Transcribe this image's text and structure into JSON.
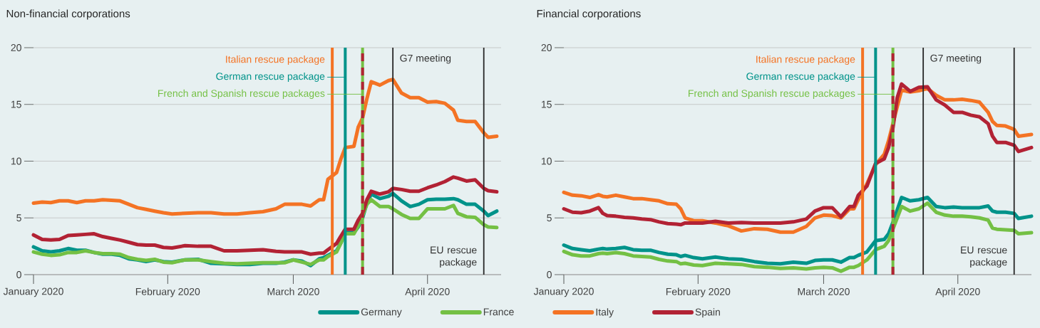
{
  "chart_data": [
    {
      "type": "line",
      "title": "Non-financial corporations",
      "x": [
        "2020-01-01",
        "2020-01-03",
        "2020-01-05",
        "2020-01-07",
        "2020-01-09",
        "2020-01-11",
        "2020-01-13",
        "2020-01-15",
        "2020-01-17",
        "2020-01-19",
        "2020-01-21",
        "2020-01-23",
        "2020-01-25",
        "2020-01-27",
        "2020-01-29",
        "2020-01-31",
        "2020-02-02",
        "2020-02-05",
        "2020-02-08",
        "2020-02-11",
        "2020-02-14",
        "2020-02-17",
        "2020-02-20",
        "2020-02-23",
        "2020-02-26",
        "2020-02-28",
        "2020-03-01",
        "2020-03-03",
        "2020-03-05",
        "2020-03-07",
        "2020-03-08",
        "2020-03-09",
        "2020-03-11",
        "2020-03-12",
        "2020-03-13",
        "2020-03-15",
        "2020-03-16",
        "2020-03-17",
        "2020-03-18",
        "2020-03-19",
        "2020-03-21",
        "2020-03-23",
        "2020-03-24",
        "2020-03-26",
        "2020-03-28",
        "2020-03-30",
        "2020-04-01",
        "2020-04-03",
        "2020-04-05",
        "2020-04-07",
        "2020-04-08",
        "2020-04-10",
        "2020-04-12",
        "2020-04-14",
        "2020-04-15",
        "2020-04-17"
      ],
      "series": [
        {
          "name": "Germany",
          "color": "#00938a",
          "values": [
            2.45,
            2.1,
            2.0,
            2.1,
            2.3,
            2.15,
            2.15,
            1.95,
            1.8,
            1.8,
            1.7,
            1.4,
            1.3,
            1.15,
            1.3,
            1.15,
            1.1,
            1.3,
            1.35,
            1.0,
            0.95,
            0.9,
            0.9,
            1.0,
            1.0,
            1.1,
            1.3,
            1.2,
            0.8,
            1.4,
            1.5,
            1.7,
            2.1,
            2.8,
            3.7,
            3.7,
            4.2,
            5.0,
            6.3,
            7.1,
            6.7,
            6.9,
            7.15,
            6.5,
            6.0,
            6.2,
            6.6,
            6.65,
            6.65,
            6.7,
            6.6,
            6.2,
            6.2,
            5.6,
            5.2,
            5.6
          ]
        },
        {
          "name": "France",
          "color": "#74c044",
          "values": [
            2.0,
            1.8,
            1.7,
            1.75,
            1.95,
            1.95,
            2.1,
            1.95,
            1.85,
            1.85,
            1.8,
            1.5,
            1.35,
            1.25,
            1.35,
            1.1,
            1.05,
            1.3,
            1.3,
            1.15,
            1.0,
            0.95,
            1.0,
            1.05,
            1.05,
            1.05,
            1.3,
            1.1,
            0.9,
            1.3,
            1.3,
            1.6,
            2.0,
            2.8,
            3.6,
            3.6,
            4.3,
            5.2,
            6.2,
            6.6,
            6.0,
            6.0,
            5.8,
            5.3,
            4.95,
            4.95,
            5.8,
            5.8,
            5.8,
            6.1,
            5.4,
            5.1,
            5.05,
            4.4,
            4.2,
            4.15
          ]
        },
        {
          "name": "Italy",
          "color": "#f47324",
          "values": [
            6.3,
            6.4,
            6.35,
            6.5,
            6.5,
            6.35,
            6.5,
            6.5,
            6.6,
            6.55,
            6.5,
            6.2,
            5.9,
            5.75,
            5.6,
            5.45,
            5.35,
            5.4,
            5.45,
            5.45,
            5.35,
            5.35,
            5.45,
            5.55,
            5.8,
            6.2,
            6.2,
            6.2,
            6.05,
            6.6,
            6.6,
            8.4,
            9.0,
            10.2,
            11.2,
            11.3,
            13.0,
            13.8,
            15.5,
            17.0,
            16.7,
            17.1,
            17.2,
            16.0,
            15.6,
            15.6,
            15.2,
            15.25,
            15.1,
            14.5,
            13.6,
            13.5,
            13.5,
            12.5,
            12.1,
            12.2
          ]
        },
        {
          "name": "Spain",
          "color": "#b22234",
          "values": [
            3.5,
            3.1,
            3.05,
            3.1,
            3.45,
            3.5,
            3.55,
            3.6,
            3.35,
            3.2,
            3.05,
            2.85,
            2.65,
            2.6,
            2.6,
            2.4,
            2.35,
            2.55,
            2.5,
            2.5,
            2.1,
            2.1,
            2.15,
            2.2,
            2.05,
            2.0,
            2.0,
            2.0,
            1.8,
            1.9,
            1.9,
            2.2,
            2.75,
            3.4,
            4.0,
            4.0,
            4.8,
            5.4,
            6.6,
            7.35,
            7.1,
            7.3,
            7.6,
            7.5,
            7.35,
            7.35,
            7.65,
            7.9,
            8.2,
            8.6,
            8.5,
            8.25,
            8.35,
            7.6,
            7.4,
            7.3
          ]
        }
      ],
      "xlim": [
        "2020-01-01",
        "2020-04-18"
      ],
      "xticks": [
        {
          "value": "2020-01-01",
          "label": "January 2020"
        },
        {
          "value": "2020-02-01",
          "label": "February 2020"
        },
        {
          "value": "2020-03-01",
          "label": "March 2020"
        },
        {
          "value": "2020-04-01",
          "label": "April 2020"
        }
      ],
      "ylim": [
        0,
        20
      ],
      "yticks": [
        0,
        5,
        10,
        15,
        20
      ],
      "grid": "y",
      "legend": "bottom",
      "ref_lines": [
        {
          "axis": "x",
          "value": "2020-03-10",
          "label": "Italian rescue package",
          "color": "#f47324"
        },
        {
          "axis": "x",
          "value": "2020-03-13",
          "label": "German rescue package",
          "color": "#00938a"
        },
        {
          "axis": "x",
          "value": "2020-03-17",
          "label": "French and Spanish rescue packages",
          "color": "#74c044"
        },
        {
          "axis": "x",
          "value": "2020-03-17",
          "color": "#b22234",
          "line_style": "dashed"
        },
        {
          "axis": "x",
          "value": "2020-03-24",
          "label": "G7 meeting"
        },
        {
          "axis": "x",
          "value": "2020-04-14",
          "label": "EU rescue package"
        }
      ]
    },
    {
      "type": "line",
      "title": "Financial corporations",
      "x": [
        "2020-01-01",
        "2020-01-03",
        "2020-01-05",
        "2020-01-07",
        "2020-01-09",
        "2020-01-10",
        "2020-01-11",
        "2020-01-13",
        "2020-01-15",
        "2020-01-17",
        "2020-01-19",
        "2020-01-21",
        "2020-01-23",
        "2020-01-25",
        "2020-01-27",
        "2020-01-28",
        "2020-01-29",
        "2020-01-31",
        "2020-02-02",
        "2020-02-05",
        "2020-02-08",
        "2020-02-11",
        "2020-02-14",
        "2020-02-17",
        "2020-02-20",
        "2020-02-23",
        "2020-02-26",
        "2020-02-28",
        "2020-03-01",
        "2020-03-03",
        "2020-03-05",
        "2020-03-07",
        "2020-03-08",
        "2020-03-09",
        "2020-03-11",
        "2020-03-13",
        "2020-03-15",
        "2020-03-16",
        "2020-03-17",
        "2020-03-18",
        "2020-03-19",
        "2020-03-21",
        "2020-03-23",
        "2020-03-25",
        "2020-03-27",
        "2020-03-29",
        "2020-03-31",
        "2020-04-02",
        "2020-04-04",
        "2020-04-06",
        "2020-04-08",
        "2020-04-09",
        "2020-04-10",
        "2020-04-12",
        "2020-04-14",
        "2020-04-15",
        "2020-04-18"
      ],
      "series": [
        {
          "color": "#00938a",
          "values": [
            2.6,
            2.3,
            2.2,
            2.1,
            2.25,
            2.3,
            2.25,
            2.3,
            2.4,
            2.2,
            2.15,
            2.15,
            1.95,
            1.8,
            1.75,
            1.6,
            1.7,
            1.5,
            1.4,
            1.55,
            1.4,
            1.35,
            1.15,
            1.0,
            0.95,
            1.1,
            1.0,
            1.25,
            1.3,
            1.3,
            1.1,
            1.5,
            1.5,
            1.7,
            2.0,
            3.0,
            3.1,
            3.6,
            4.6,
            5.7,
            6.8,
            6.5,
            6.6,
            6.8,
            6.0,
            5.9,
            5.95,
            5.9,
            5.9,
            5.9,
            6.05,
            5.6,
            5.5,
            5.5,
            5.4,
            4.95,
            5.15
          ]
        },
        {
          "color": "#74c044",
          "values": [
            2.05,
            1.75,
            1.65,
            1.65,
            1.85,
            1.9,
            1.85,
            1.95,
            1.85,
            1.65,
            1.6,
            1.55,
            1.35,
            1.2,
            1.15,
            0.95,
            1.0,
            0.85,
            0.8,
            1.0,
            0.95,
            0.9,
            0.7,
            0.65,
            0.55,
            0.6,
            0.5,
            0.6,
            0.65,
            0.6,
            0.3,
            0.65,
            0.65,
            0.8,
            1.3,
            2.2,
            2.5,
            3.0,
            4.0,
            5.0,
            6.0,
            5.6,
            5.8,
            6.3,
            5.5,
            5.25,
            5.15,
            5.15,
            5.1,
            5.0,
            4.8,
            4.1,
            4.0,
            3.95,
            3.9,
            3.6,
            3.7
          ]
        },
        {
          "color": "#f47324",
          "values": [
            7.25,
            7.0,
            6.95,
            6.8,
            7.05,
            6.9,
            6.85,
            7.0,
            6.85,
            6.7,
            6.7,
            6.6,
            6.5,
            6.25,
            6.2,
            5.8,
            5.0,
            4.75,
            4.75,
            4.55,
            4.3,
            3.85,
            4.05,
            4.0,
            3.75,
            3.75,
            4.25,
            5.0,
            5.25,
            5.2,
            5.0,
            5.8,
            5.8,
            6.6,
            8.0,
            9.7,
            10.6,
            11.8,
            13.3,
            14.8,
            16.25,
            16.1,
            16.2,
            16.4,
            15.8,
            15.4,
            15.4,
            15.45,
            15.35,
            15.2,
            14.3,
            13.5,
            13.15,
            13.1,
            12.8,
            12.2,
            12.35
          ]
        },
        {
          "color": "#b22234",
          "values": [
            5.8,
            5.5,
            5.45,
            5.6,
            5.9,
            5.4,
            5.2,
            5.15,
            5.05,
            5.0,
            4.9,
            4.85,
            4.65,
            4.5,
            4.45,
            4.4,
            4.55,
            4.55,
            4.55,
            4.7,
            4.55,
            4.6,
            4.55,
            4.55,
            4.55,
            4.65,
            4.9,
            5.6,
            5.9,
            5.9,
            5.1,
            6.0,
            6.0,
            7.0,
            7.8,
            9.8,
            10.2,
            11.2,
            12.9,
            15.6,
            16.8,
            16.15,
            16.5,
            16.55,
            15.4,
            14.95,
            14.3,
            14.3,
            14.05,
            13.9,
            13.3,
            12.2,
            11.65,
            11.65,
            11.4,
            10.85,
            11.2
          ]
        }
      ],
      "xlim": [
        "2020-01-01",
        "2020-04-18"
      ],
      "xticks": [
        {
          "value": "2020-01-01",
          "label": "January 2020"
        },
        {
          "value": "2020-02-01",
          "label": "February 2020"
        },
        {
          "value": "2020-03-01",
          "label": "March 2020"
        },
        {
          "value": "2020-04-01",
          "label": "April 2020"
        }
      ],
      "ylim": [
        0,
        20
      ],
      "yticks": [
        0,
        5,
        10,
        15,
        20
      ],
      "grid": "y",
      "ref_lines": [
        {
          "axis": "x",
          "value": "2020-03-10",
          "label": "Italian rescue package",
          "color": "#f47324"
        },
        {
          "axis": "x",
          "value": "2020-03-13",
          "label": "German rescue package",
          "color": "#00938a"
        },
        {
          "axis": "x",
          "value": "2020-03-17",
          "label": "French and Spanish rescue packages",
          "color": "#74c044"
        },
        {
          "axis": "x",
          "value": "2020-03-17",
          "color": "#b22234",
          "line_style": "dashed"
        },
        {
          "axis": "x",
          "value": "2020-03-24",
          "label": "G7 meeting"
        },
        {
          "axis": "x",
          "value": "2020-04-14",
          "label": "EU rescue package"
        }
      ]
    }
  ]
}
